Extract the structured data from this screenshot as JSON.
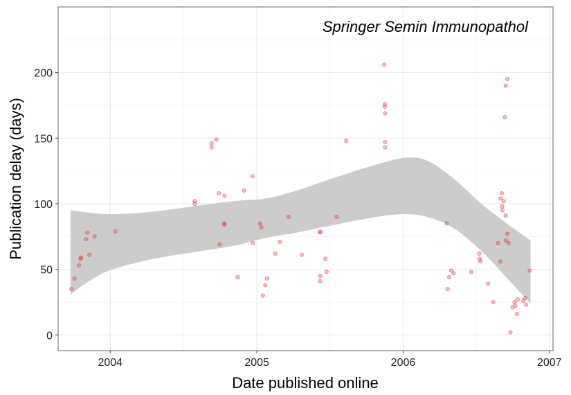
{
  "chart_data": {
    "type": "scatter",
    "title": "Springer Semin Immunopathol",
    "xlabel": "Date published online",
    "ylabel": "Publication delay (days)",
    "xlim": [
      "2003-08-24",
      "2007-01-10"
    ],
    "ylim": [
      -12,
      250
    ],
    "x_ticks": [
      {
        "label": "2004",
        "value": "2004-01-01"
      },
      {
        "label": "2005",
        "value": "2005-01-01"
      },
      {
        "label": "2006",
        "value": "2006-01-01"
      },
      {
        "label": "2007",
        "value": "2007-01-01"
      }
    ],
    "y_ticks": [
      0,
      50,
      100,
      150,
      200
    ],
    "grid": true,
    "point_color": "#e41a1c",
    "band_color": "#cccccc",
    "points": [
      {
        "x": "2003-09-26",
        "y": 35
      },
      {
        "x": "2003-10-04",
        "y": 43
      },
      {
        "x": "2003-10-15",
        "y": 53
      },
      {
        "x": "2003-10-19",
        "y": 58
      },
      {
        "x": "2003-10-20",
        "y": 59
      },
      {
        "x": "2003-11-02",
        "y": 73
      },
      {
        "x": "2003-11-05",
        "y": 78
      },
      {
        "x": "2003-11-10",
        "y": 61
      },
      {
        "x": "2003-11-23",
        "y": 75
      },
      {
        "x": "2004-01-14",
        "y": 79
      },
      {
        "x": "2004-07-30",
        "y": 102
      },
      {
        "x": "2004-07-30",
        "y": 100
      },
      {
        "x": "2004-09-10",
        "y": 146
      },
      {
        "x": "2004-09-10",
        "y": 143
      },
      {
        "x": "2004-09-22",
        "y": 149
      },
      {
        "x": "2004-09-28",
        "y": 108
      },
      {
        "x": "2004-09-30",
        "y": 69
      },
      {
        "x": "2004-10-12",
        "y": 106
      },
      {
        "x": "2004-10-12",
        "y": 85
      },
      {
        "x": "2004-10-12",
        "y": 84
      },
      {
        "x": "2004-11-14",
        "y": 44
      },
      {
        "x": "2004-11-30",
        "y": 110
      },
      {
        "x": "2004-12-21",
        "y": 121
      },
      {
        "x": "2004-12-22",
        "y": 70
      },
      {
        "x": "2005-01-09",
        "y": 85
      },
      {
        "x": "2005-01-12",
        "y": 82
      },
      {
        "x": "2005-01-16",
        "y": 30
      },
      {
        "x": "2005-01-22",
        "y": 38
      },
      {
        "x": "2005-01-26",
        "y": 43
      },
      {
        "x": "2005-02-16",
        "y": 62
      },
      {
        "x": "2005-02-27",
        "y": 71
      },
      {
        "x": "2005-03-21",
        "y": 90
      },
      {
        "x": "2005-04-23",
        "y": 61
      },
      {
        "x": "2005-06-08",
        "y": 79
      },
      {
        "x": "2005-06-08",
        "y": 78
      },
      {
        "x": "2005-06-08",
        "y": 45
      },
      {
        "x": "2005-06-08",
        "y": 41
      },
      {
        "x": "2005-06-21",
        "y": 58
      },
      {
        "x": "2005-06-24",
        "y": 48
      },
      {
        "x": "2005-07-19",
        "y": 90
      },
      {
        "x": "2005-08-12",
        "y": 148
      },
      {
        "x": "2005-11-15",
        "y": 206
      },
      {
        "x": "2005-11-16",
        "y": 176
      },
      {
        "x": "2005-11-16",
        "y": 174
      },
      {
        "x": "2005-11-17",
        "y": 169
      },
      {
        "x": "2005-11-17",
        "y": 147
      },
      {
        "x": "2005-11-17",
        "y": 143
      },
      {
        "x": "2006-04-20",
        "y": 85
      },
      {
        "x": "2006-04-22",
        "y": 35
      },
      {
        "x": "2006-04-26",
        "y": 44
      },
      {
        "x": "2006-05-01",
        "y": 49
      },
      {
        "x": "2006-05-07",
        "y": 47
      },
      {
        "x": "2006-06-20",
        "y": 48
      },
      {
        "x": "2006-07-10",
        "y": 62
      },
      {
        "x": "2006-07-11",
        "y": 58
      },
      {
        "x": "2006-07-13",
        "y": 56
      },
      {
        "x": "2006-08-01",
        "y": 39
      },
      {
        "x": "2006-08-14",
        "y": 25
      },
      {
        "x": "2006-08-26",
        "y": 70
      },
      {
        "x": "2006-09-01",
        "y": 104
      },
      {
        "x": "2006-09-01",
        "y": 56
      },
      {
        "x": "2006-09-04",
        "y": 108
      },
      {
        "x": "2006-09-05",
        "y": 98
      },
      {
        "x": "2006-09-06",
        "y": 95
      },
      {
        "x": "2006-09-09",
        "y": 102
      },
      {
        "x": "2006-09-12",
        "y": 166
      },
      {
        "x": "2006-09-14",
        "y": 190
      },
      {
        "x": "2006-09-14",
        "y": 91
      },
      {
        "x": "2006-09-14",
        "y": 72
      },
      {
        "x": "2006-09-18",
        "y": 195
      },
      {
        "x": "2006-09-18",
        "y": 77
      },
      {
        "x": "2006-09-21",
        "y": 70
      },
      {
        "x": "2006-09-26",
        "y": 2
      },
      {
        "x": "2006-10-01",
        "y": 21
      },
      {
        "x": "2006-10-06",
        "y": 25
      },
      {
        "x": "2006-10-08",
        "y": 22
      },
      {
        "x": "2006-10-12",
        "y": 16
      },
      {
        "x": "2006-10-14",
        "y": 27
      },
      {
        "x": "2006-10-28",
        "y": 26
      },
      {
        "x": "2006-11-01",
        "y": 28
      },
      {
        "x": "2006-11-04",
        "y": 23
      },
      {
        "x": "2006-11-13",
        "y": 49
      }
    ],
    "smooth_band": [
      {
        "x": "2003-09-24",
        "upper": 95,
        "lower": 31
      },
      {
        "x": "2003-11-15",
        "upper": 93,
        "lower": 42
      },
      {
        "x": "2004-01-07",
        "upper": 92,
        "lower": 50
      },
      {
        "x": "2004-04-18",
        "upper": 94,
        "lower": 58
      },
      {
        "x": "2004-07-27",
        "upper": 98,
        "lower": 63
      },
      {
        "x": "2004-11-05",
        "upper": 102,
        "lower": 68
      },
      {
        "x": "2005-01-24",
        "upper": 104,
        "lower": 74
      },
      {
        "x": "2005-04-10",
        "upper": 110,
        "lower": 78
      },
      {
        "x": "2005-07-15",
        "upper": 120,
        "lower": 84
      },
      {
        "x": "2005-10-28",
        "upper": 130,
        "lower": 90
      },
      {
        "x": "2006-01-05",
        "upper": 135,
        "lower": 92
      },
      {
        "x": "2006-03-01",
        "upper": 133,
        "lower": 90
      },
      {
        "x": "2006-05-04",
        "upper": 120,
        "lower": 82
      },
      {
        "x": "2006-07-15",
        "upper": 100,
        "lower": 64
      },
      {
        "x": "2006-09-21",
        "upper": 84,
        "lower": 42
      },
      {
        "x": "2006-11-15",
        "upper": 72,
        "lower": 24
      }
    ]
  }
}
